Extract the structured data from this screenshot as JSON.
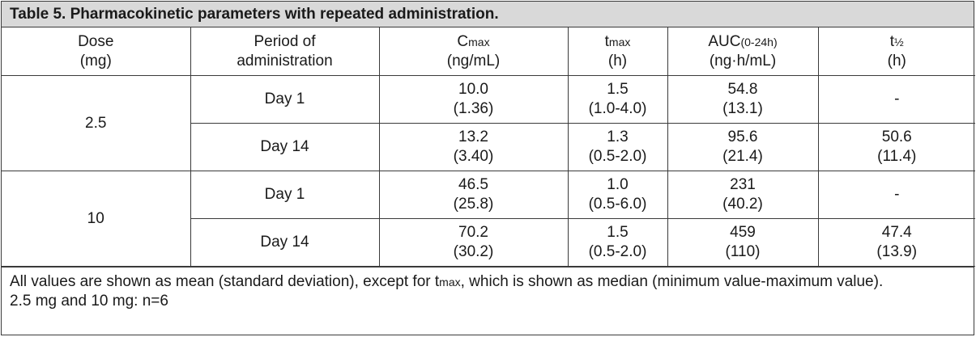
{
  "table": {
    "title": "Table 5. Pharmacokinetic parameters with repeated administration.",
    "headers": {
      "dose": {
        "line1": "Dose",
        "line2": "(mg)"
      },
      "period": {
        "line1": "Period of",
        "line2": "administration"
      },
      "cmax": {
        "main": "C",
        "sub": "max",
        "line2": "(ng/mL)"
      },
      "tmax": {
        "main": "t",
        "sub": "max",
        "line2": "(h)"
      },
      "auc": {
        "main": "AUC",
        "sub": "(0-24h)",
        "line2": "(ng·h/mL)"
      },
      "thalf": {
        "main": "t",
        "sub": "½",
        "line2": "(h)"
      }
    },
    "groups": [
      {
        "dose": "2.5",
        "rows": [
          {
            "period": "Day 1",
            "cmax": {
              "mean": "10.0",
              "sd": "(1.36)"
            },
            "tmax": {
              "median": "1.5",
              "range": "(1.0-4.0)"
            },
            "auc": {
              "mean": "54.8",
              "sd": "(13.1)"
            },
            "thalf": {
              "mean": "-",
              "sd": ""
            }
          },
          {
            "period": "Day 14",
            "cmax": {
              "mean": "13.2",
              "sd": "(3.40)"
            },
            "tmax": {
              "median": "1.3",
              "range": "(0.5-2.0)"
            },
            "auc": {
              "mean": "95.6",
              "sd": "(21.4)"
            },
            "thalf": {
              "mean": "50.6",
              "sd": "(11.4)"
            }
          }
        ]
      },
      {
        "dose": "10",
        "rows": [
          {
            "period": "Day 1",
            "cmax": {
              "mean": "46.5",
              "sd": "(25.8)"
            },
            "tmax": {
              "median": "1.0",
              "range": "(0.5-6.0)"
            },
            "auc": {
              "mean": "231",
              "sd": "(40.2)"
            },
            "thalf": {
              "mean": "-",
              "sd": ""
            }
          },
          {
            "period": "Day 14",
            "cmax": {
              "mean": "70.2",
              "sd": "(30.2)"
            },
            "tmax": {
              "median": "1.5",
              "range": "(0.5-2.0)"
            },
            "auc": {
              "mean": "459",
              "sd": "(110)"
            },
            "thalf": {
              "mean": "47.4",
              "sd": "(13.9)"
            }
          }
        ]
      }
    ],
    "footer": {
      "note_pre": "All values are shown as mean (standard deviation), except for t",
      "note_sub": "max",
      "note_post": ", which is shown as median (minimum value-maximum value).",
      "n_note": "2.5 mg and 10 mg: n=6"
    }
  }
}
